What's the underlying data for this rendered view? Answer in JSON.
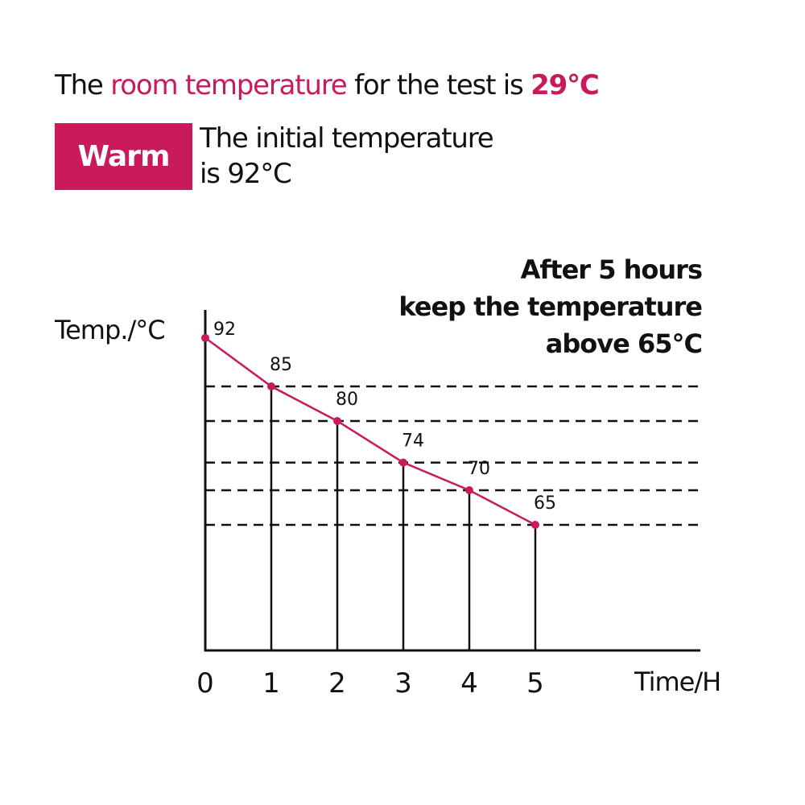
{
  "header": {
    "prefix": "The ",
    "highlight": "room temperature",
    "middle": " for the test is ",
    "value": "29°C"
  },
  "badge": {
    "label": "Warm"
  },
  "initial_note": "The initial temperature is 92°C",
  "goal_note": [
    "After 5 hours",
    "keep the temperature",
    "above 65°C"
  ],
  "colors": {
    "accent": "#c91a5b",
    "axis": "#111111"
  },
  "chart_data": {
    "type": "line",
    "xlabel": "Time/H",
    "ylabel": "Temp./°C",
    "x": [
      0,
      1,
      2,
      3,
      4,
      5
    ],
    "x_tick_labels": [
      "0",
      "1",
      "2",
      "3",
      "4",
      "5"
    ],
    "values": [
      92,
      85,
      80,
      74,
      70,
      65
    ],
    "data_labels": [
      "92",
      "85",
      "80",
      "74",
      "70",
      "65"
    ],
    "xlim": [
      0,
      7.5
    ],
    "grid": "dashed horizontal reference lines at data values 85, 80, 74, 70, 65; vertical drop lines from each point",
    "legend": "none"
  }
}
